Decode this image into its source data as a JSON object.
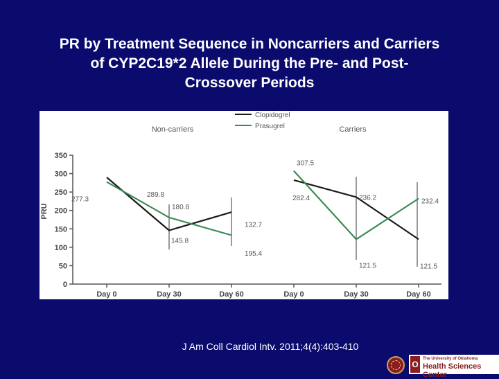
{
  "slide": {
    "title_lines": [
      "PR by Treatment Sequence in Noncarriers and Carriers",
      "of CYP2C19*2 Allele During the Pre- and Post-",
      "Crossover Periods"
    ],
    "citation": "J Am Coll Cardiol Intv. 2011;4(4):403-410",
    "logo_line1": "The University of Oklahoma",
    "logo_line2": "Health Sciences Center"
  },
  "chart_data": {
    "type": "line",
    "ylabel": "PRU",
    "ylim": [
      0,
      350
    ],
    "yticks": [
      "0",
      "50",
      "100",
      "150",
      "200",
      "250",
      "300",
      "350"
    ],
    "groups": [
      {
        "name": "Non-carriers",
        "categories": [
          "Day 0",
          "Day 30",
          "Day 60"
        ],
        "series": [
          {
            "name": "Clopidogrel",
            "values": [
              289.8,
              145.8,
              195.4
            ],
            "labels": [
              "289.8",
              "145.8",
              "195.4"
            ]
          },
          {
            "name": "Prasugrel",
            "values": [
              277.3,
              180.8,
              132.7
            ],
            "labels": [
              "277.3",
              "180.8",
              "132.7"
            ]
          }
        ]
      },
      {
        "name": "Carriers",
        "categories": [
          "Day 0",
          "Day 30",
          "Day 60"
        ],
        "series": [
          {
            "name": "Clopidogrel",
            "values": [
              282.4,
              236.2,
              121.5
            ],
            "labels": [
              "282.4",
              "236.2",
              "121.5"
            ]
          },
          {
            "name": "Prasugrel",
            "values": [
              307.5,
              121.5,
              232.4
            ],
            "labels": [
              "307.5",
              "121.5",
              "232.4"
            ]
          }
        ]
      }
    ],
    "legend": [
      {
        "name": "Clopidogrel",
        "color": "#1a1a1a"
      },
      {
        "name": "Prasugrel",
        "color": "#3a8a55"
      }
    ],
    "colors": {
      "Clopidogrel": "#1a1a1a",
      "Prasugrel": "#3a8a55"
    }
  }
}
